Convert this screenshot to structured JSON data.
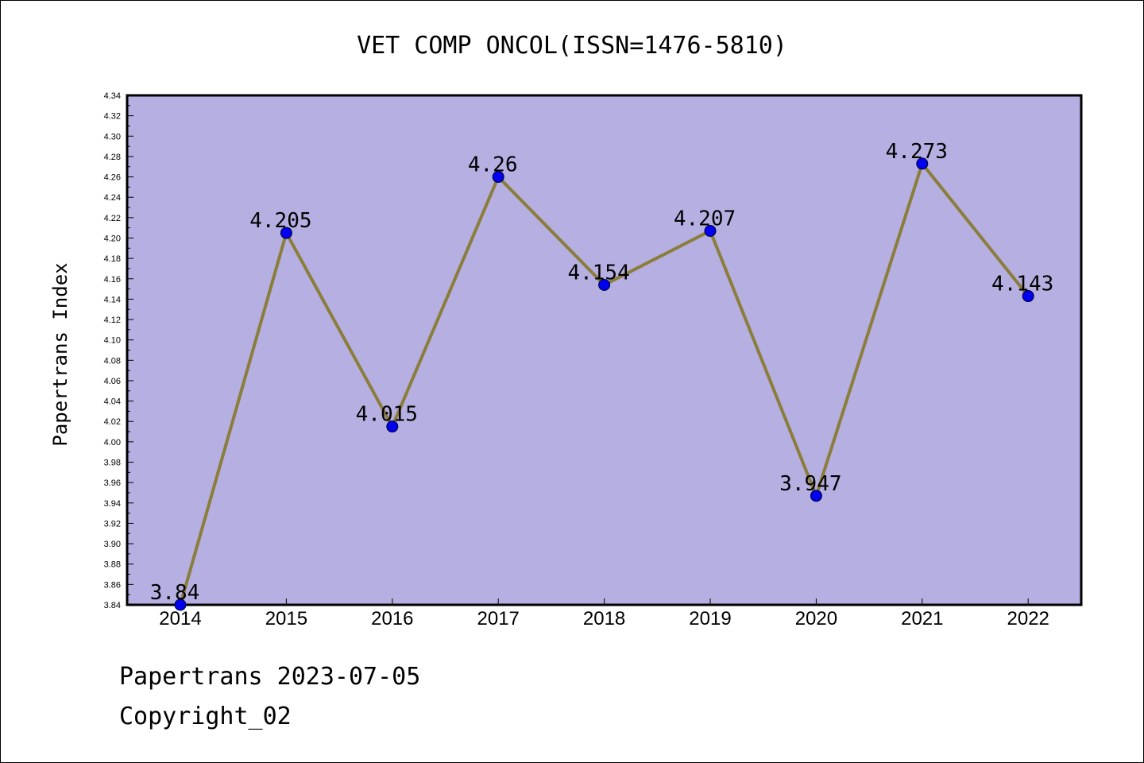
{
  "chart_data": {
    "type": "line",
    "title": "VET COMP ONCOL(ISSN=1476-5810)",
    "ylabel": "Papertrans Index",
    "xlabel": "",
    "categories": [
      "2014",
      "2015",
      "2016",
      "2017",
      "2018",
      "2019",
      "2020",
      "2021",
      "2022"
    ],
    "series": [
      {
        "values": [
          3.84,
          4.205,
          4.015,
          4.26,
          4.154,
          4.207,
          3.947,
          4.273,
          4.143
        ],
        "labels": [
          "3.84",
          "4.205",
          "4.015",
          "4.26",
          "4.154",
          "4.207",
          "3.947",
          "4.273",
          "4.143"
        ],
        "line_color": "#8b7d3a",
        "marker_color": "#0000ee"
      }
    ],
    "ylim": [
      3.84,
      4.34
    ],
    "yticks": [
      "3.84",
      "3.86",
      "3.88",
      "3.90",
      "3.92",
      "3.94",
      "3.96",
      "3.98",
      "4.00",
      "4.02",
      "4.04",
      "4.06",
      "4.08",
      "4.10",
      "4.12",
      "4.14",
      "4.16",
      "4.18",
      "4.20",
      "4.22",
      "4.24",
      "4.26",
      "4.28",
      "4.30",
      "4.32",
      "4.34"
    ],
    "plot_background": "#b5afe2",
    "grid": false,
    "legend": "none"
  },
  "footer": {
    "line1": "Papertrans 2023-07-05",
    "line2": "Copyright_02"
  }
}
